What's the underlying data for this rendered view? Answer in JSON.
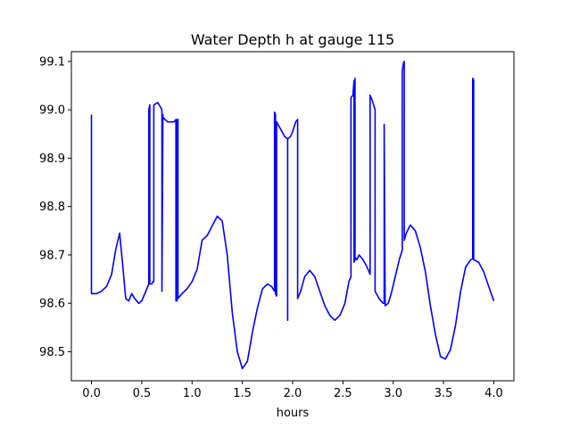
{
  "chart_data": {
    "type": "line",
    "title": "Water Depth h at gauge 115",
    "xlabel": "hours",
    "ylabel": "",
    "xlim": [
      -0.2,
      4.2
    ],
    "ylim": [
      98.44,
      99.12
    ],
    "xticks": [
      0.0,
      0.5,
      1.0,
      1.5,
      2.0,
      2.5,
      3.0,
      3.5,
      4.0
    ],
    "xtick_labels": [
      "0.0",
      "0.5",
      "1.0",
      "1.5",
      "2.0",
      "2.5",
      "3.0",
      "3.5",
      "4.0"
    ],
    "yticks": [
      98.5,
      98.6,
      98.7,
      98.8,
      98.9,
      99.0,
      99.1
    ],
    "ytick_labels": [
      "98.5",
      "98.6",
      "98.7",
      "98.8",
      "98.9",
      "99.0",
      "99.1"
    ],
    "grid": false,
    "series": [
      {
        "color": "#0000ff",
        "x": [
          0.0,
          0.0,
          0.0,
          0.05,
          0.1,
          0.15,
          0.2,
          0.24,
          0.28,
          0.31,
          0.34,
          0.37,
          0.4,
          0.43,
          0.47,
          0.5,
          0.53,
          0.56,
          0.57,
          0.57,
          0.58,
          0.58,
          0.58,
          0.6,
          0.61,
          0.62,
          0.62,
          0.66,
          0.7,
          0.7,
          0.7,
          0.71,
          0.71,
          0.73,
          0.76,
          0.79,
          0.82,
          0.84,
          0.84,
          0.85,
          0.85,
          0.86,
          0.86,
          0.9,
          0.95,
          1.0,
          1.05,
          1.1,
          1.15,
          1.2,
          1.25,
          1.3,
          1.35,
          1.4,
          1.45,
          1.5,
          1.55,
          1.6,
          1.65,
          1.7,
          1.75,
          1.79,
          1.82,
          1.82,
          1.83,
          1.83,
          1.84,
          1.84,
          1.88,
          1.92,
          1.95,
          1.95,
          1.95,
          1.98,
          2.0,
          2.03,
          2.05,
          2.05,
          2.08,
          2.12,
          2.17,
          2.22,
          2.27,
          2.32,
          2.37,
          2.42,
          2.47,
          2.52,
          2.56,
          2.58,
          2.58,
          2.6,
          2.61,
          2.61,
          2.62,
          2.62,
          2.62,
          2.64,
          2.66,
          2.7,
          2.74,
          2.77,
          2.77,
          2.79,
          2.82,
          2.82,
          2.86,
          2.9,
          2.91,
          2.91,
          2.92,
          2.95,
          2.98,
          3.02,
          3.06,
          3.09,
          3.09,
          3.1,
          3.11,
          3.11,
          3.13,
          3.17,
          3.22,
          3.27,
          3.32,
          3.37,
          3.42,
          3.47,
          3.52,
          3.57,
          3.62,
          3.67,
          3.72,
          3.77,
          3.79,
          3.79,
          3.8,
          3.8,
          3.85,
          3.9,
          3.95,
          4.0
        ],
        "y": [
          98.99,
          98.62,
          98.62,
          98.62,
          98.625,
          98.635,
          98.66,
          98.71,
          98.745,
          98.68,
          98.61,
          98.605,
          98.62,
          98.61,
          98.6,
          98.605,
          98.62,
          98.635,
          98.64,
          99.0,
          99.01,
          98.64,
          98.64,
          98.64,
          98.645,
          98.645,
          99.01,
          99.015,
          99.0,
          98.63,
          98.625,
          98.99,
          98.985,
          98.98,
          98.975,
          98.975,
          98.975,
          98.98,
          98.605,
          98.605,
          98.98,
          98.98,
          98.61,
          98.62,
          98.63,
          98.645,
          98.67,
          98.73,
          98.74,
          98.76,
          98.78,
          98.77,
          98.7,
          98.58,
          98.5,
          98.465,
          98.48,
          98.54,
          98.59,
          98.63,
          98.64,
          98.635,
          98.625,
          98.995,
          98.99,
          98.62,
          98.615,
          98.975,
          98.96,
          98.945,
          98.94,
          98.565,
          98.94,
          98.945,
          98.955,
          98.975,
          98.98,
          98.61,
          98.625,
          98.655,
          98.668,
          98.655,
          98.625,
          98.595,
          98.575,
          98.565,
          98.575,
          98.6,
          98.645,
          98.655,
          99.025,
          99.03,
          99.06,
          98.685,
          98.69,
          99.065,
          98.695,
          98.69,
          98.7,
          98.69,
          98.675,
          98.66,
          99.03,
          99.02,
          99.0,
          98.625,
          98.61,
          98.6,
          98.6,
          98.97,
          98.595,
          98.6,
          98.62,
          98.655,
          98.69,
          98.71,
          99.08,
          99.095,
          99.1,
          98.73,
          98.745,
          98.762,
          98.75,
          98.715,
          98.665,
          98.595,
          98.535,
          98.49,
          98.485,
          98.505,
          98.555,
          98.625,
          98.675,
          98.69,
          98.692,
          99.065,
          99.062,
          98.69,
          98.685,
          98.665,
          98.635,
          98.605
        ]
      }
    ]
  }
}
